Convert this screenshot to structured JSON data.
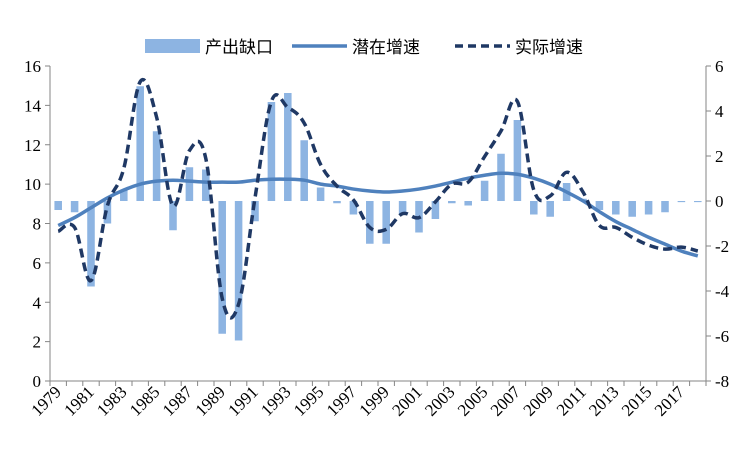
{
  "chart_data": {
    "type": "bar+line",
    "title": "",
    "xlabel": "",
    "ylabel_left": "",
    "ylabel_right": "",
    "legend_position": "top",
    "grid": false,
    "x": [
      1979,
      1980,
      1981,
      1982,
      1983,
      1984,
      1985,
      1986,
      1987,
      1988,
      1989,
      1990,
      1991,
      1992,
      1993,
      1994,
      1995,
      1996,
      1997,
      1998,
      1999,
      2000,
      2001,
      2002,
      2003,
      2004,
      2005,
      2006,
      2007,
      2008,
      2009,
      2010,
      2011,
      2012,
      2013,
      2014,
      2015,
      2016,
      2017,
      2018
    ],
    "x_tick_labels": [
      "1979",
      "1981",
      "1983",
      "1985",
      "1987",
      "1989",
      "1991",
      "1993",
      "1995",
      "1997",
      "1999",
      "2001",
      "2003",
      "2005",
      "2007",
      "2009",
      "2011",
      "2013",
      "2015",
      "2017"
    ],
    "y_left": {
      "min": 0,
      "max": 16,
      "ticks": [
        "0",
        "2",
        "4",
        "6",
        "8",
        "10",
        "12",
        "14",
        "16"
      ]
    },
    "y_right": {
      "min": -8,
      "max": 6,
      "ticks": [
        "-8",
        "-6",
        "-4",
        "-2",
        "0",
        "2",
        "4",
        "6"
      ]
    },
    "series": [
      {
        "name": "产出缺口",
        "type": "bar",
        "axis": "right",
        "color": "#8db4e2",
        "values": [
          -0.4,
          -0.5,
          -3.8,
          -1.0,
          0.5,
          5.1,
          3.1,
          -1.3,
          1.5,
          1.4,
          -5.9,
          -6.2,
          -0.9,
          4.4,
          4.8,
          2.7,
          0.6,
          -0.1,
          -0.6,
          -1.9,
          -1.9,
          -0.6,
          -1.4,
          -0.8,
          -0.1,
          -0.2,
          0.9,
          2.1,
          3.6,
          -0.6,
          -0.7,
          0.8,
          0.1,
          -0.4,
          -0.6,
          -0.7,
          -0.6,
          -0.5,
          -0.05,
          -0.05
        ]
      },
      {
        "name": "潜在增速",
        "type": "line",
        "axis": "left",
        "color": "#4f81bd",
        "dash": "solid",
        "values": [
          7.9,
          8.3,
          8.8,
          9.3,
          9.7,
          10.0,
          10.15,
          10.2,
          10.15,
          10.1,
          10.1,
          10.1,
          10.2,
          10.25,
          10.25,
          10.2,
          10.0,
          9.9,
          9.75,
          9.65,
          9.6,
          9.65,
          9.75,
          9.9,
          10.1,
          10.3,
          10.45,
          10.55,
          10.5,
          10.3,
          10.0,
          9.6,
          9.15,
          8.6,
          8.1,
          7.7,
          7.3,
          6.95,
          6.6,
          6.35
        ]
      },
      {
        "name": "实际增速",
        "type": "line",
        "axis": "left",
        "color": "#1f3864",
        "dash": "dashed",
        "values": [
          7.6,
          7.8,
          5.1,
          8.9,
          10.8,
          15.2,
          13.4,
          8.9,
          11.7,
          11.3,
          4.2,
          3.9,
          9.3,
          14.2,
          13.9,
          13.1,
          11.0,
          9.9,
          9.2,
          7.8,
          7.7,
          8.5,
          8.3,
          9.1,
          10.0,
          10.1,
          11.4,
          12.7,
          14.2,
          9.7,
          9.4,
          10.6,
          9.6,
          7.9,
          7.8,
          7.3,
          6.9,
          6.7,
          6.8,
          6.6
        ]
      }
    ]
  }
}
